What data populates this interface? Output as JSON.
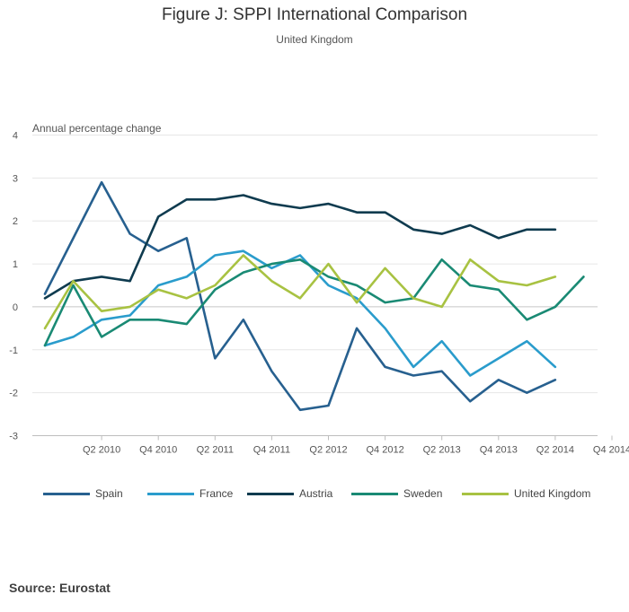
{
  "chart_data": {
    "type": "line",
    "title": "Figure J: SPPI International Comparison",
    "subtitle": "United Kingdom",
    "ylabel": "Annual percentage change",
    "xlabel": "",
    "ylim": [
      -3,
      4
    ],
    "yticks": [
      "4",
      "3",
      "2",
      "1",
      "0",
      "-1",
      "-2",
      "-3"
    ],
    "ytick_values": [
      4,
      3,
      2,
      1,
      0,
      -1,
      -2,
      -3
    ],
    "x": [
      "Q4 2009",
      "Q1 2010",
      "Q2 2010",
      "Q3 2010",
      "Q4 2010",
      "Q1 2011",
      "Q2 2011",
      "Q3 2011",
      "Q4 2011",
      "Q1 2012",
      "Q2 2012",
      "Q3 2012",
      "Q4 2012",
      "Q1 2013",
      "Q2 2013",
      "Q3 2013",
      "Q4 2013",
      "Q1 2014",
      "Q2 2014",
      "Q3 2014",
      "Q4 2014"
    ],
    "xtick_labels": [
      "Q2 2010",
      "Q4 2010",
      "Q2 2011",
      "Q4 2011",
      "Q2 2012",
      "Q4 2012",
      "Q2 2013",
      "Q4 2013",
      "Q2 2014",
      "Q4 2014"
    ],
    "xtick_indices": [
      2,
      4,
      6,
      8,
      10,
      12,
      14,
      16,
      18,
      20
    ],
    "grid": true,
    "legend_position": "bottom",
    "series": [
      {
        "name": "Spain",
        "color": "#27608f",
        "values": [
          0.3,
          1.6,
          2.9,
          1.7,
          1.3,
          1.6,
          -1.2,
          -0.3,
          -1.5,
          -2.4,
          -2.3,
          -0.5,
          -1.4,
          -1.6,
          -1.5,
          -2.2,
          -1.7,
          -2.0,
          -1.7,
          null,
          null
        ]
      },
      {
        "name": "France",
        "color": "#2a9ccc",
        "values": [
          -0.9,
          -0.7,
          -0.3,
          -0.2,
          0.5,
          0.7,
          1.2,
          1.3,
          0.9,
          1.2,
          0.5,
          0.2,
          -0.5,
          -1.4,
          -0.8,
          -1.6,
          -1.2,
          -0.8,
          -1.4,
          null,
          null
        ]
      },
      {
        "name": "Austria",
        "color": "#0f3b4f",
        "values": [
          0.2,
          0.6,
          0.7,
          0.6,
          2.1,
          2.5,
          2.5,
          2.6,
          2.4,
          2.3,
          2.4,
          2.2,
          2.2,
          1.8,
          1.7,
          1.9,
          1.6,
          1.8,
          1.8,
          null,
          null
        ]
      },
      {
        "name": "Sweden",
        "color": "#1a8a74",
        "values": [
          -0.9,
          0.5,
          -0.7,
          -0.3,
          -0.3,
          -0.4,
          0.4,
          0.8,
          1.0,
          1.1,
          0.7,
          0.5,
          0.1,
          0.2,
          1.1,
          0.5,
          0.4,
          -0.3,
          0.0,
          0.7,
          null
        ]
      },
      {
        "name": "United Kingdom",
        "color": "#a8c242",
        "values": [
          -0.5,
          0.6,
          -0.1,
          0.0,
          0.4,
          0.2,
          0.5,
          1.2,
          0.6,
          0.2,
          1.0,
          0.1,
          0.9,
          0.2,
          0.0,
          1.1,
          0.6,
          0.5,
          0.7,
          null,
          null
        ]
      }
    ]
  },
  "footer": {
    "source": "Source: Eurostat"
  }
}
